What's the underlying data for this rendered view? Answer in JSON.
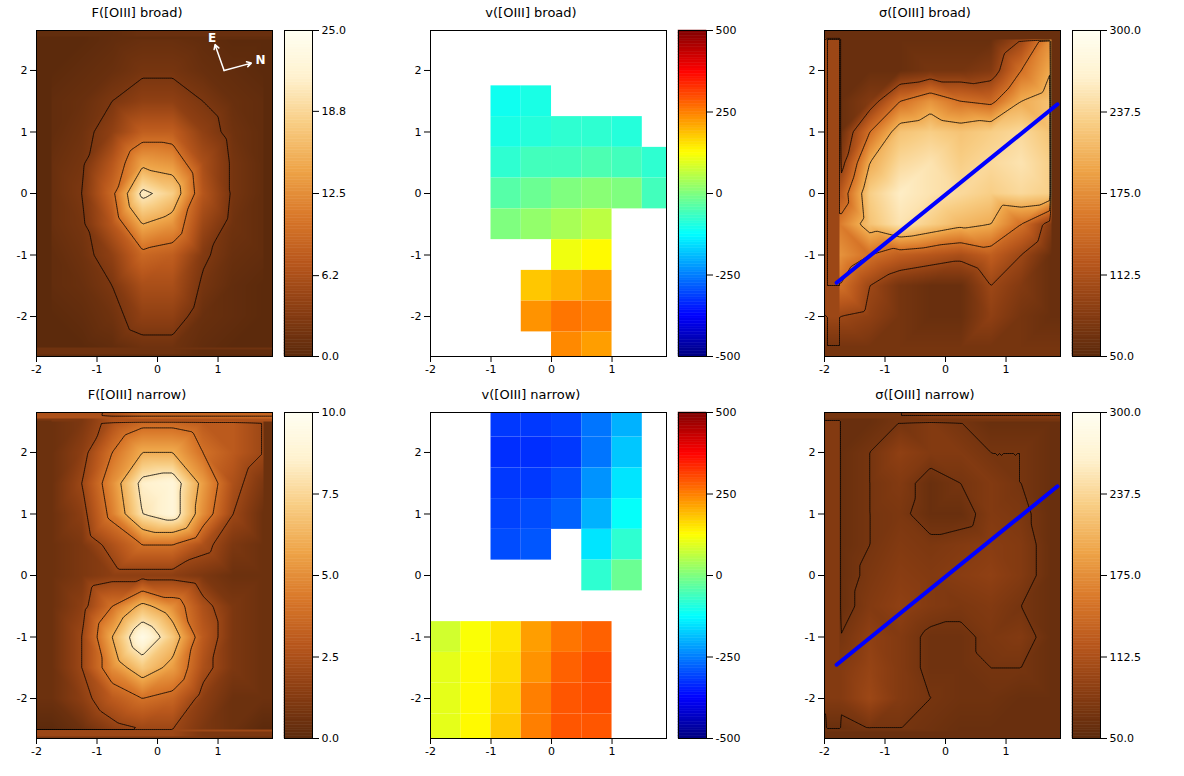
{
  "chart_data": [
    {
      "type": "heatmap",
      "title": "F([OIII] broad)",
      "color": "heat",
      "xlim": [
        -2,
        1.9
      ],
      "ylim": [
        -2.65,
        2.65
      ],
      "xticks": [
        -2,
        -1,
        0,
        1
      ],
      "yticks": [
        -2,
        -1,
        0,
        1,
        2
      ],
      "x": [
        -1.75,
        -1.25,
        -0.75,
        -0.25,
        0.25,
        0.75,
        1.25,
        1.75
      ],
      "y": [
        2.5,
        2.0,
        1.5,
        1.0,
        0.5,
        0.0,
        -0.5,
        -1.0,
        -1.5,
        -2.0,
        -2.5
      ],
      "cells": [
        [
          0,
          0,
          0.5,
          1,
          1,
          0.5,
          0,
          0
        ],
        [
          0,
          0.5,
          1,
          2,
          2,
          1,
          0.5,
          0
        ],
        [
          0.5,
          1,
          2.5,
          4,
          4,
          2.5,
          1,
          0.5
        ],
        [
          0.5,
          1.5,
          4,
          8,
          8,
          4,
          1.5,
          0.5
        ],
        [
          1,
          2,
          7,
          14,
          13,
          6,
          2,
          0.5
        ],
        [
          1,
          2.5,
          9,
          21,
          18,
          7,
          2,
          0.5
        ],
        [
          1,
          2,
          7,
          15,
          13,
          5,
          1.5,
          0.5
        ],
        [
          0.5,
          1.5,
          4,
          9,
          8,
          3,
          1,
          0.5
        ],
        [
          0.5,
          1,
          2.5,
          6,
          6,
          2,
          0.5,
          0
        ],
        [
          0,
          0.5,
          1.5,
          4,
          4,
          1,
          0.5,
          0
        ],
        [
          0,
          0,
          0.5,
          1.5,
          1.5,
          0.5,
          0,
          0
        ]
      ],
      "contours": [
        2.5,
        10,
        15,
        20
      ],
      "compass": [
        "E",
        "N"
      ],
      "colorbar": {
        "range": [
          0,
          25
        ],
        "ticks": [
          {
            "value": 0,
            "label": "0.0"
          },
          6.2,
          12.5,
          18.8,
          {
            "value": 25,
            "label": "25.0"
          }
        ]
      }
    },
    {
      "type": "heatmap",
      "title": "v([OIII] broad)",
      "color": "jet",
      "xlim": [
        -2,
        1.9
      ],
      "ylim": [
        -2.65,
        2.65
      ],
      "xticks": [
        -2,
        -1,
        0,
        1
      ],
      "yticks": [
        -2,
        -1,
        0,
        1,
        2
      ],
      "x": [
        -1.75,
        -1.25,
        -0.75,
        -0.25,
        0.25,
        0.75,
        1.25,
        1.75
      ],
      "y": [
        2.5,
        2.0,
        1.5,
        1.0,
        0.5,
        0.0,
        -0.5,
        -1.0,
        -1.5,
        -2.0,
        -2.5
      ],
      "cells": [
        [
          null,
          null,
          null,
          null,
          null,
          null,
          null,
          null
        ],
        [
          null,
          null,
          null,
          null,
          null,
          null,
          null,
          null
        ],
        [
          null,
          null,
          -110,
          -100,
          null,
          null,
          null,
          null
        ],
        [
          null,
          null,
          -100,
          -90,
          -80,
          -80,
          -90,
          null
        ],
        [
          null,
          null,
          -80,
          -60,
          -60,
          -50,
          -60,
          -80
        ],
        [
          null,
          null,
          -40,
          -20,
          0,
          10,
          0,
          -60
        ],
        [
          null,
          null,
          0,
          20,
          40,
          60,
          null,
          null
        ],
        [
          null,
          null,
          null,
          null,
          110,
          130,
          null,
          null
        ],
        [
          null,
          null,
          null,
          180,
          200,
          220,
          null,
          null
        ],
        [
          null,
          null,
          null,
          230,
          260,
          250,
          null,
          null
        ],
        [
          null,
          null,
          null,
          null,
          240,
          220,
          null,
          null
        ]
      ],
      "colorbar": {
        "range": [
          -500,
          500
        ],
        "ticks": [
          -500,
          -250,
          0,
          250,
          500
        ]
      }
    },
    {
      "type": "heatmap",
      "title": "σ([OIII] broad)",
      "color": "heat",
      "xlim": [
        -2,
        1.9
      ],
      "ylim": [
        -2.65,
        2.65
      ],
      "xticks": [
        -2,
        -1,
        0,
        1
      ],
      "yticks": [
        -2,
        -1,
        0,
        1,
        2
      ],
      "x": [
        -1.75,
        -1.25,
        -0.75,
        -0.25,
        0.25,
        0.75,
        1.25,
        1.75
      ],
      "y": [
        2.5,
        2.0,
        1.5,
        1.0,
        0.5,
        0.0,
        -0.5,
        -1.0,
        -1.5,
        -2.0,
        -2.5
      ],
      "cells": [
        [
          60,
          60,
          60,
          60,
          60,
          60,
          100,
          180
        ],
        [
          60,
          60,
          60,
          70,
          70,
          80,
          150,
          200
        ],
        [
          60,
          80,
          150,
          180,
          150,
          140,
          200,
          220
        ],
        [
          60,
          150,
          220,
          230,
          220,
          230,
          240,
          220
        ],
        [
          80,
          200,
          240,
          250,
          230,
          240,
          250,
          230
        ],
        [
          120,
          230,
          260,
          250,
          240,
          230,
          240,
          230
        ],
        [
          160,
          220,
          250,
          230,
          210,
          200,
          150,
          80
        ],
        [
          180,
          150,
          130,
          120,
          110,
          130,
          100,
          60
        ],
        [
          150,
          100,
          70,
          60,
          60,
          100,
          80,
          60
        ],
        [
          100,
          90,
          70,
          60,
          60,
          90,
          70,
          60
        ],
        [
          70,
          70,
          70,
          70,
          70,
          70,
          70,
          70
        ]
      ],
      "contours": [
        100,
        150,
        200
      ],
      "lines": [
        {
          "x": [
            -1.8,
            1.85
          ],
          "y": [
            -1.45,
            1.45
          ],
          "color": "#0000ff"
        }
      ],
      "colorbar": {
        "range": [
          50,
          300
        ],
        "ticks": [
          {
            "value": 50,
            "label": "50.0"
          },
          112.5,
          {
            "value": 175,
            "label": "175.0"
          },
          237.5,
          {
            "value": 300,
            "label": "300.0"
          }
        ]
      }
    },
    {
      "type": "heatmap",
      "title": "F([OIII] narrow)",
      "color": "heat",
      "xlim": [
        -2,
        1.9
      ],
      "ylim": [
        -2.65,
        2.65
      ],
      "xticks": [
        -2,
        -1,
        0,
        1
      ],
      "yticks": [
        -2,
        -1,
        0,
        1,
        2
      ],
      "x": [
        -1.75,
        -1.25,
        -0.75,
        -0.25,
        0.25,
        0.75,
        1.25,
        1.75
      ],
      "y": [
        2.5,
        2.0,
        1.5,
        1.0,
        0.5,
        0.0,
        -0.5,
        -1.0,
        -1.5,
        -2.0,
        -2.5
      ],
      "cells": [
        [
          0.5,
          1,
          2.5,
          3.5,
          3.5,
          3,
          3,
          2
        ],
        [
          0.5,
          1.5,
          4,
          6,
          6,
          4,
          3,
          2
        ],
        [
          0.5,
          2,
          5,
          8.5,
          9,
          5.5,
          2.5,
          1
        ],
        [
          0.5,
          1.5,
          4.5,
          8,
          9,
          5,
          2,
          0.5
        ],
        [
          0.5,
          1,
          2.5,
          4,
          4,
          2.5,
          1,
          0.5
        ],
        [
          0.5,
          1,
          1.5,
          1.5,
          1.5,
          1,
          0.5,
          0.5
        ],
        [
          0.5,
          1.5,
          4,
          6.5,
          5,
          2.5,
          1,
          0.5
        ],
        [
          0.5,
          2,
          6,
          9.5,
          7,
          3,
          1,
          0.5
        ],
        [
          0.5,
          2,
          5,
          7,
          5.5,
          2.5,
          1,
          0.5
        ],
        [
          0.5,
          1.5,
          3,
          4,
          3.5,
          1.5,
          0.5,
          0.5
        ],
        [
          0,
          0.5,
          1.5,
          2,
          2,
          1,
          0.5,
          0
        ]
      ],
      "contours": [
        2,
        4,
        6,
        8
      ],
      "colorbar": {
        "range": [
          0,
          10
        ],
        "ticks": [
          {
            "value": 0,
            "label": "0.0"
          },
          2.5,
          {
            "value": 5,
            "label": "5.0"
          },
          7.5,
          {
            "value": 10,
            "label": "10.0"
          }
        ]
      }
    },
    {
      "type": "heatmap",
      "title": "v([OIII] narrow)",
      "color": "jet",
      "xlim": [
        -2,
        1.9
      ],
      "ylim": [
        -2.65,
        2.65
      ],
      "xticks": [
        -2,
        -1,
        0,
        1
      ],
      "yticks": [
        -2,
        -1,
        0,
        1,
        2
      ],
      "x": [
        -1.75,
        -1.25,
        -0.75,
        -0.25,
        0.25,
        0.75,
        1.25,
        1.75
      ],
      "y": [
        2.5,
        2.0,
        1.5,
        1.0,
        0.5,
        0.0,
        -0.5,
        -1.0,
        -1.5,
        -2.0,
        -2.5
      ],
      "cells": [
        [
          null,
          null,
          -320,
          -320,
          -310,
          -260,
          -200,
          null
        ],
        [
          null,
          null,
          -330,
          -330,
          -320,
          -260,
          -180,
          null
        ],
        [
          null,
          null,
          -320,
          -320,
          -300,
          -230,
          -150,
          null
        ],
        [
          null,
          null,
          -310,
          -300,
          -280,
          -200,
          -120,
          null
        ],
        [
          null,
          null,
          -300,
          -290,
          null,
          -150,
          -80,
          null
        ],
        [
          null,
          null,
          null,
          null,
          null,
          -80,
          -20,
          null
        ],
        [
          null,
          null,
          null,
          null,
          null,
          null,
          null,
          null
        ],
        [
          80,
          120,
          150,
          220,
          260,
          280,
          null,
          null
        ],
        [
          100,
          130,
          160,
          230,
          280,
          300,
          null,
          null
        ],
        [
          100,
          130,
          170,
          250,
          290,
          300,
          null,
          null
        ],
        [
          100,
          130,
          180,
          250,
          290,
          290,
          null,
          null
        ]
      ],
      "colorbar": {
        "range": [
          -500,
          500
        ],
        "ticks": [
          -500,
          -250,
          0,
          250,
          500
        ]
      }
    },
    {
      "type": "heatmap",
      "title": "σ([OIII] narrow)",
      "color": "heat",
      "xlim": [
        -2,
        1.9
      ],
      "ylim": [
        -2.65,
        2.65
      ],
      "xticks": [
        -2,
        -1,
        0,
        1
      ],
      "yticks": [
        -2,
        -1,
        0,
        1,
        2
      ],
      "x": [
        -1.75,
        -1.25,
        -0.75,
        -0.25,
        0.25,
        0.75,
        1.25,
        1.75
      ],
      "y": [
        2.5,
        2.0,
        1.5,
        1.0,
        0.5,
        0.0,
        -0.5,
        -1.0,
        -1.5,
        -2.0,
        -2.5
      ],
      "cells": [
        [
          60,
          60,
          70,
          80,
          70,
          60,
          60,
          60
        ],
        [
          60,
          70,
          90,
          80,
          80,
          70,
          70,
          60
        ],
        [
          60,
          70,
          80,
          60,
          70,
          80,
          70,
          60
        ],
        [
          60,
          70,
          75,
          60,
          60,
          80,
          75,
          60
        ],
        [
          60,
          70,
          80,
          75,
          80,
          85,
          80,
          60
        ],
        [
          60,
          75,
          85,
          80,
          85,
          90,
          80,
          60
        ],
        [
          60,
          80,
          90,
          80,
          75,
          80,
          70,
          60
        ],
        [
          70,
          90,
          80,
          65,
          65,
          75,
          80,
          60
        ],
        [
          80,
          95,
          80,
          65,
          65,
          70,
          70,
          60
        ],
        [
          80,
          100,
          80,
          70,
          65,
          65,
          60,
          60
        ],
        [
          60,
          70,
          70,
          65,
          60,
          60,
          60,
          60
        ]
      ],
      "contours": [
        70,
        100
      ],
      "lines": [
        {
          "x": [
            -1.8,
            1.85
          ],
          "y": [
            -1.45,
            1.45
          ],
          "color": "#0000ff"
        }
      ],
      "colorbar": {
        "range": [
          50,
          300
        ],
        "ticks": [
          {
            "value": 50,
            "label": "50.0"
          },
          112.5,
          {
            "value": 175,
            "label": "175.0"
          },
          237.5,
          {
            "value": 300,
            "label": "300.0"
          }
        ]
      }
    }
  ]
}
